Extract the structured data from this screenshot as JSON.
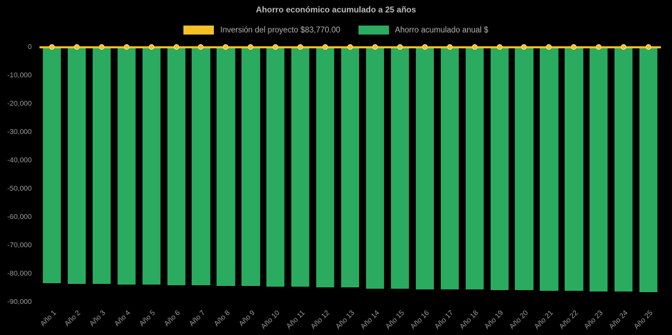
{
  "page": {
    "background": "#000000"
  },
  "chart": {
    "title": "Ahorro económico acumulado a 25 años",
    "legend": [
      {
        "label": "Inversión del proyecto $83,770.00",
        "color": "#f6c026"
      },
      {
        "label": "Ahorro acumulado anual $",
        "color": "#2aab5f"
      }
    ]
  },
  "chart_data": {
    "type": "bar",
    "title": "Ahorro económico acumulado a 25 años",
    "categories": [
      "Año 1",
      "Año 2",
      "Año 3",
      "Año 4",
      "Año 5",
      "Año 6",
      "Año 7",
      "Año 8",
      "Año 9",
      "Año 10",
      "Año 11",
      "Año 12",
      "Año 13",
      "Año 14",
      "Año 15",
      "Año 16",
      "Año 17",
      "Año 18",
      "Año 19",
      "Año 20",
      "Año 21",
      "Año 22",
      "Año 23",
      "Año 24",
      "Año 25"
    ],
    "series": [
      {
        "name": "Inversión del proyecto $83,770.00",
        "type": "line",
        "color": "#f6c026",
        "values": [
          0,
          0,
          0,
          0,
          0,
          0,
          0,
          0,
          0,
          0,
          0,
          0,
          0,
          0,
          0,
          0,
          0,
          0,
          0,
          0,
          0,
          0,
          0,
          0,
          0
        ]
      },
      {
        "name": "Ahorro acumulado anual $",
        "type": "bar",
        "color": "#2aab5f",
        "values": [
          -83400,
          -83550,
          -83650,
          -83800,
          -83900,
          -84050,
          -84150,
          -84300,
          -84400,
          -84550,
          -84650,
          -84800,
          -84900,
          -85300,
          -85400,
          -85500,
          -85600,
          -85700,
          -85800,
          -85900,
          -86000,
          -86150,
          -86300,
          -86450,
          -86600
        ]
      }
    ],
    "ylim": [
      -90000,
      0
    ],
    "yticks": [
      0,
      -10000,
      -20000,
      -30000,
      -40000,
      -50000,
      -60000,
      -70000,
      -80000,
      -90000
    ],
    "ytick_labels": [
      "0",
      "-10,000",
      "-20,000",
      "-30,000",
      "-40,000",
      "-50,000",
      "-60,000",
      "-70,000",
      "-80,000",
      "-90,000"
    ],
    "legend_position": "top",
    "grid": false
  }
}
